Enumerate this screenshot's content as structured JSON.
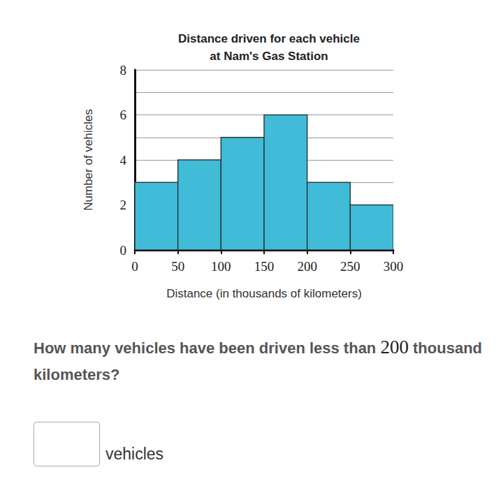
{
  "chart_data": {
    "type": "histogram",
    "title": "Distance driven for each vehicle\nat Nam's Gas Station",
    "xlabel": "Distance (in thousands of kilometers)",
    "ylabel": "Number of vehicles",
    "bins": [
      0,
      50,
      100,
      150,
      200,
      250,
      300
    ],
    "values": [
      3,
      4,
      5,
      6,
      3,
      2
    ],
    "color": "#40bcd8",
    "xlim": [
      0,
      300
    ],
    "xticks": [
      0,
      50,
      100,
      150,
      200,
      250,
      300
    ],
    "ylim": [
      0,
      8
    ],
    "yticks": [
      0,
      2,
      4,
      6,
      8
    ],
    "grid": true
  },
  "question": "How many vehicles have been driven less than 200 thousand kilometers?",
  "answer_unit": "vehicles"
}
